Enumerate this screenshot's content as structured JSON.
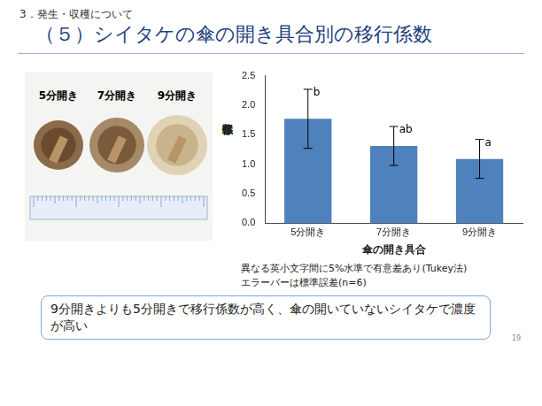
{
  "slide": {
    "section": "3．発生・収穫について",
    "title": "（５）シイタケの傘の開き具合別の移行係数",
    "photo_labels": [
      "5分開き",
      "7分開き",
      "9分開き"
    ],
    "conclusion": "9分開きよりも5分開きで移行係数が高く、傘の開いていないシイタケで濃度が高い",
    "page": "19"
  },
  "chart_data": {
    "type": "bar",
    "categories": [
      "5分開き",
      "7分開き",
      "9分開き"
    ],
    "values": [
      1.77,
      1.31,
      1.09
    ],
    "errors": [
      0.5,
      0.33,
      0.33
    ],
    "significance_labels": [
      "b",
      "ab",
      "a"
    ],
    "color": "#4f81bd",
    "x_label": "傘の開き具合",
    "y_label": "移行係数",
    "ylim": [
      0,
      2.5
    ],
    "yticks": [
      {
        "value": 0,
        "label": "0.0"
      },
      {
        "value": 0.5,
        "label": "0.5"
      },
      {
        "value": 1,
        "label": "1.0"
      },
      {
        "value": 1.5,
        "label": "1.5"
      },
      {
        "value": 2,
        "label": "2.0"
      },
      {
        "value": 2.5,
        "label": "2.5"
      }
    ],
    "grid": false,
    "annotations": [
      "異なる英小文字間に5%水準で有意差あり(Tukey法)",
      "エラーバーは標準誤差(n=6)"
    ]
  }
}
